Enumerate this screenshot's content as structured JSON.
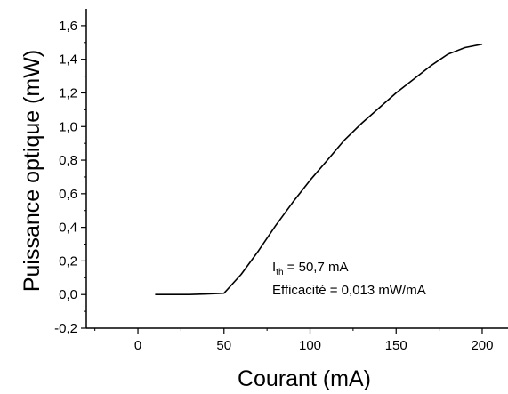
{
  "chart_data": {
    "type": "line",
    "title": "",
    "xlabel": "Courant (mA)",
    "ylabel": "Puissance optique (mW)",
    "xlim": [
      -30,
      215
    ],
    "ylim": [
      -0.2,
      1.7
    ],
    "x_ticks": [
      {
        "value": 0,
        "label": "0"
      },
      {
        "value": 50,
        "label": "50"
      },
      {
        "value": 100,
        "label": "100"
      },
      {
        "value": 150,
        "label": "150"
      },
      {
        "value": 200,
        "label": "200"
      }
    ],
    "y_ticks": [
      {
        "value": -0.2,
        "label": "-0,2"
      },
      {
        "value": 0.0,
        "label": "0,0"
      },
      {
        "value": 0.2,
        "label": "0,2"
      },
      {
        "value": 0.4,
        "label": "0,4"
      },
      {
        "value": 0.6,
        "label": "0,6"
      },
      {
        "value": 0.8,
        "label": "0,8"
      },
      {
        "value": 1.0,
        "label": "1,0"
      },
      {
        "value": 1.2,
        "label": "1,2"
      },
      {
        "value": 1.4,
        "label": "1,4"
      },
      {
        "value": 1.6,
        "label": "1,6"
      }
    ],
    "grid": false,
    "series": [
      {
        "x": [
          10,
          20,
          30,
          40,
          50,
          60,
          70,
          80,
          90,
          100,
          110,
          120,
          130,
          140,
          150,
          160,
          170,
          180,
          190,
          200
        ],
        "y": [
          0.0,
          0.0,
          0.0,
          0.003,
          0.008,
          0.12,
          0.26,
          0.41,
          0.55,
          0.68,
          0.8,
          0.92,
          1.02,
          1.11,
          1.2,
          1.28,
          1.36,
          1.43,
          1.47,
          1.49
        ]
      }
    ],
    "annotations": {
      "ith_main": "I",
      "ith_sub": "th",
      "ith_value": " = 50,7 mA",
      "efficiency": "Efficacité = 0,013 mW/mA"
    }
  }
}
